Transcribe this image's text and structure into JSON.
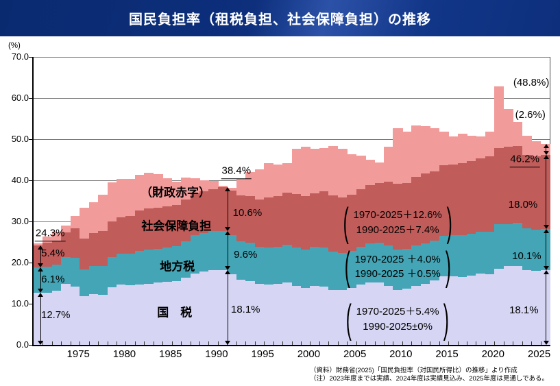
{
  "header": {
    "title": "国民負担率（租税負担、社会保障負担）の推移"
  },
  "footer": {
    "source": "（資料）財務省(2025)「国民負担率（対国民所得比）の推移」より作成",
    "note": "（注）2023年度までは実績、2024年度は実績見込み、2025年度は見通しである。"
  },
  "chart_data": {
    "type": "area",
    "stacked": true,
    "title": "国民負担率（租税負担、社会保障負担）の推移",
    "ylabel": "(%)",
    "ylim": [
      0,
      70
    ],
    "grid": true,
    "ytick_labels": [
      "0.0",
      "10.0",
      "20.0",
      "30.0",
      "40.0",
      "50.0",
      "60.0",
      "70.0"
    ],
    "xticks": [
      1975,
      1980,
      1985,
      1990,
      1995,
      2000,
      2005,
      2010,
      2015,
      2020,
      2025
    ],
    "x": [
      1970,
      1971,
      1972,
      1973,
      1974,
      1975,
      1976,
      1977,
      1978,
      1979,
      1980,
      1981,
      1982,
      1983,
      1984,
      1985,
      1986,
      1987,
      1988,
      1989,
      1990,
      1991,
      1992,
      1993,
      1994,
      1995,
      1996,
      1997,
      1998,
      1999,
      2000,
      2001,
      2002,
      2003,
      2004,
      2005,
      2006,
      2007,
      2008,
      2009,
      2010,
      2011,
      2012,
      2013,
      2014,
      2015,
      2016,
      2017,
      2018,
      2019,
      2020,
      2021,
      2022,
      2023,
      2024,
      2025
    ],
    "series": [
      {
        "key": "national-tax",
        "name": "国税",
        "color": "#d6d5f4",
        "values": [
          12.7,
          12.6,
          13.1,
          14.8,
          14.2,
          11.8,
          12.3,
          12.2,
          14.0,
          14.6,
          14.5,
          14.7,
          14.9,
          15.1,
          15.3,
          15.5,
          16.4,
          17.4,
          17.8,
          18.2,
          18.1,
          17.2,
          15.8,
          15.5,
          14.8,
          14.7,
          14.9,
          15.1,
          14.3,
          13.8,
          14.4,
          14.1,
          13.3,
          13.3,
          13.8,
          14.7,
          15.2,
          15.2,
          14.3,
          13.3,
          13.7,
          14.4,
          14.9,
          15.7,
          16.6,
          16.7,
          16.5,
          16.9,
          17.3,
          17.2,
          18.5,
          19.2,
          19.1,
          18.2,
          18.0,
          18.1
        ]
      },
      {
        "key": "local-tax",
        "name": "地方税",
        "color": "#43a5b5",
        "values": [
          6.1,
          6.4,
          6.4,
          6.6,
          7.0,
          6.5,
          6.8,
          6.9,
          7.3,
          7.5,
          7.7,
          8.1,
          8.3,
          8.3,
          8.3,
          8.5,
          8.8,
          9.2,
          9.4,
          9.5,
          9.6,
          9.5,
          9.3,
          9.3,
          9.1,
          9.0,
          9.0,
          9.3,
          9.4,
          9.3,
          9.4,
          9.5,
          9.3,
          9.0,
          9.0,
          9.2,
          9.5,
          9.6,
          9.9,
          9.9,
          9.6,
          9.8,
          9.8,
          9.7,
          9.9,
          10.0,
          10.1,
          10.1,
          10.2,
          10.3,
          10.8,
          10.2,
          10.5,
          10.1,
          10.0,
          10.1
        ]
      },
      {
        "key": "social-security",
        "name": "社会保障負担",
        "color": "#c05c5a",
        "values": [
          5.4,
          5.9,
          5.9,
          6.0,
          7.1,
          7.5,
          8.1,
          8.6,
          8.7,
          8.9,
          9.1,
          9.8,
          10.0,
          10.0,
          10.0,
          10.0,
          10.2,
          10.2,
          10.1,
          10.2,
          10.6,
          10.8,
          11.2,
          11.4,
          11.5,
          12.1,
          12.2,
          12.6,
          12.9,
          13.0,
          13.1,
          13.7,
          13.8,
          13.6,
          13.7,
          14.0,
          14.1,
          14.5,
          15.5,
          15.9,
          16.0,
          16.7,
          16.9,
          16.8,
          17.2,
          17.2,
          17.6,
          17.7,
          17.9,
          18.4,
          18.6,
          18.7,
          18.8,
          17.8,
          17.8,
          18.0
        ]
      },
      {
        "key": "fiscal-deficit",
        "name": "財政赤字",
        "color": "#f29b9b",
        "values": [
          0.5,
          1.5,
          2.1,
          1.6,
          3.1,
          7.5,
          7.5,
          8.8,
          9.5,
          9.3,
          9.0,
          8.8,
          8.6,
          8.1,
          6.9,
          5.7,
          5.2,
          3.7,
          2.7,
          2.0,
          0.3,
          0.6,
          4.0,
          5.8,
          7.3,
          8.3,
          7.7,
          7.2,
          11.0,
          12.1,
          10.7,
          10.5,
          12.0,
          11.7,
          9.8,
          8.1,
          6.2,
          5.0,
          8.5,
          13.6,
          12.5,
          12.5,
          11.5,
          10.5,
          8.2,
          6.8,
          7.1,
          6.1,
          5.3,
          6.0,
          15.0,
          9.3,
          5.7,
          4.8,
          3.7,
          2.6
        ]
      }
    ],
    "annotations": {
      "labels": [
        {
          "id": "rate-1970-total",
          "text": "24.3%",
          "yf": 1971.8,
          "v": 26.8,
          "underline": true,
          "size": 15
        },
        {
          "id": "rate-1970-social",
          "text": "5.4%",
          "yf": 1972.1,
          "v": 22.2,
          "size": 15
        },
        {
          "id": "rate-1970-local",
          "text": "6.1%",
          "yf": 1972.1,
          "v": 15.8,
          "size": 15
        },
        {
          "id": "rate-1970-national",
          "text": "12.7%",
          "yf": 1972.4,
          "v": 7.2,
          "size": 15
        },
        {
          "id": "series-label-deficit",
          "text": "（財政赤字）",
          "yf": 1985.4,
          "v": 36.8,
          "bold": true,
          "size": 17
        },
        {
          "id": "series-label-social",
          "text": "社会保障負担",
          "yf": 1985.5,
          "v": 28.7,
          "bold": true,
          "size": 17
        },
        {
          "id": "series-label-local",
          "text": "地方税",
          "yf": 1985.6,
          "v": 18.8,
          "bold": true,
          "size": 17
        },
        {
          "id": "series-label-national",
          "text": "国　税",
          "yf": 1985.3,
          "v": 7.7,
          "bold": true,
          "size": 17
        },
        {
          "id": "rate-1990-total",
          "text": "38.4%",
          "yf": 1992.0,
          "v": 42.0,
          "underline": true,
          "size": 15
        },
        {
          "id": "rate-1990-social",
          "text": "10.6%",
          "yf": 1993.2,
          "v": 32.0,
          "size": 15
        },
        {
          "id": "rate-1990-local",
          "text": "9.6%",
          "yf": 1993.0,
          "v": 21.8,
          "size": 15
        },
        {
          "id": "rate-1990-national",
          "text": "18.1%",
          "yf": 1993.0,
          "v": 8.5,
          "size": 15
        },
        {
          "id": "rate-2025-potential",
          "text": "(48.8%)",
          "yf": 2024.0,
          "v": 63.7,
          "size": 15
        },
        {
          "id": "rate-2025-deficit",
          "text": "(2.6%)",
          "yf": 2023.9,
          "v": 55.8,
          "size": 15
        },
        {
          "id": "rate-2025-total",
          "text": "46.2%",
          "yf": 2023.3,
          "v": 44.8,
          "underline": true,
          "size": 15
        },
        {
          "id": "rate-2025-social",
          "text": "18.0%",
          "yf": 2023.1,
          "v": 34.0,
          "size": 15
        },
        {
          "id": "rate-2025-local",
          "text": "10.1%",
          "yf": 2023.5,
          "v": 21.5,
          "size": 15
        },
        {
          "id": "rate-2025-national",
          "text": "18.1%",
          "yf": 2023.2,
          "v": 8.3,
          "size": 15
        }
      ],
      "brackets": [
        {
          "id": "change-social",
          "lines": [
            "1970-2025＋12.6%",
            "1990-2025＋7.4%"
          ],
          "yf": 2009.5,
          "v": 29.7
        },
        {
          "id": "change-local",
          "lines": [
            "1970-2025 ＋4.0%",
            "1990-2025 ＋0.5%"
          ],
          "yf": 2009.5,
          "v": 19.0
        },
        {
          "id": "change-national",
          "lines": [
            "1970-2025＋5.4%",
            "1990-2025±0%"
          ],
          "yf": 2009.5,
          "v": 6.2
        }
      ],
      "arrows": [
        {
          "yf": 1970.75,
          "from": 0,
          "to": 12.7
        },
        {
          "yf": 1970.75,
          "from": 12.7,
          "to": 18.8
        },
        {
          "yf": 1970.75,
          "from": 18.8,
          "to": 24.2
        },
        {
          "yf": 1991.05,
          "from": 0,
          "to": 18.1
        },
        {
          "yf": 1991.05,
          "from": 18.1,
          "to": 27.7
        },
        {
          "yf": 1991.05,
          "from": 27.7,
          "to": 38.3
        },
        {
          "yf": 2025.6,
          "from": 0,
          "to": 18.1
        },
        {
          "yf": 2025.6,
          "from": 18.1,
          "to": 28.2
        },
        {
          "yf": 2025.6,
          "from": 28.2,
          "to": 46.2
        },
        {
          "yf": 2025.6,
          "from": 46.2,
          "to": 48.8
        }
      ]
    }
  }
}
